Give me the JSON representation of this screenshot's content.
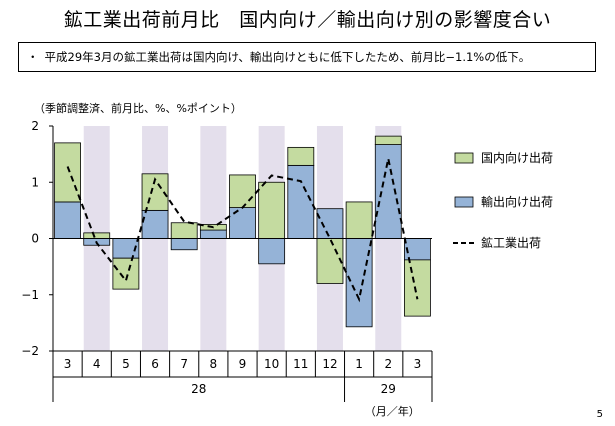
{
  "title": "鉱工業出荷前月比　国内向け／輸出向け別の影響度合い",
  "summary": {
    "bullet": "・",
    "text": "平成29年3月の鉱工業出荷は国内向け、輸出向けともに低下したため、前月比−1.1%の低下。"
  },
  "unit_note": "（季節調整済、前月比、%、%ポイント）",
  "page_number": "5",
  "colors": {
    "domestic": "#c4dba0",
    "export": "#95b3d7",
    "bar_outline": "#000000",
    "shade": "#e4dfec",
    "total_line": "#000000"
  },
  "chart_data": {
    "type": "bar",
    "stacked": true,
    "categories": [
      "3",
      "4",
      "5",
      "6",
      "7",
      "8",
      "9",
      "10",
      "11",
      "12",
      "1",
      "2",
      "3"
    ],
    "year_labels": [
      {
        "label": "28",
        "span": [
          "3",
          "12"
        ]
      },
      {
        "label": "29",
        "span": [
          "1",
          "3"
        ]
      }
    ],
    "x_unit_label": "（月／年）",
    "ylim": [
      -2,
      2
    ],
    "yticks": [
      -2,
      -1,
      0,
      1,
      2
    ],
    "shaded_categories": [
      1,
      3,
      5,
      7,
      9,
      11
    ],
    "series": [
      {
        "name": "国内向け出荷",
        "kind": "bar",
        "values": [
          1.05,
          0.1,
          -0.55,
          0.65,
          0.28,
          0.1,
          0.58,
          1.0,
          0.32,
          -0.8,
          0.65,
          0.15,
          -1.0
        ]
      },
      {
        "name": "輸出向け出荷",
        "kind": "bar",
        "values": [
          0.65,
          -0.12,
          -0.35,
          0.5,
          -0.2,
          0.15,
          0.55,
          -0.45,
          1.3,
          0.53,
          -1.57,
          1.67,
          -0.38
        ]
      },
      {
        "name": "鉱工業出荷",
        "kind": "line",
        "style": "dashed",
        "values": [
          1.28,
          -0.08,
          -0.75,
          1.05,
          0.3,
          0.2,
          0.55,
          1.12,
          1.02,
          0.0,
          -1.08,
          1.42,
          -1.08
        ]
      }
    ],
    "legend_position": "right"
  }
}
